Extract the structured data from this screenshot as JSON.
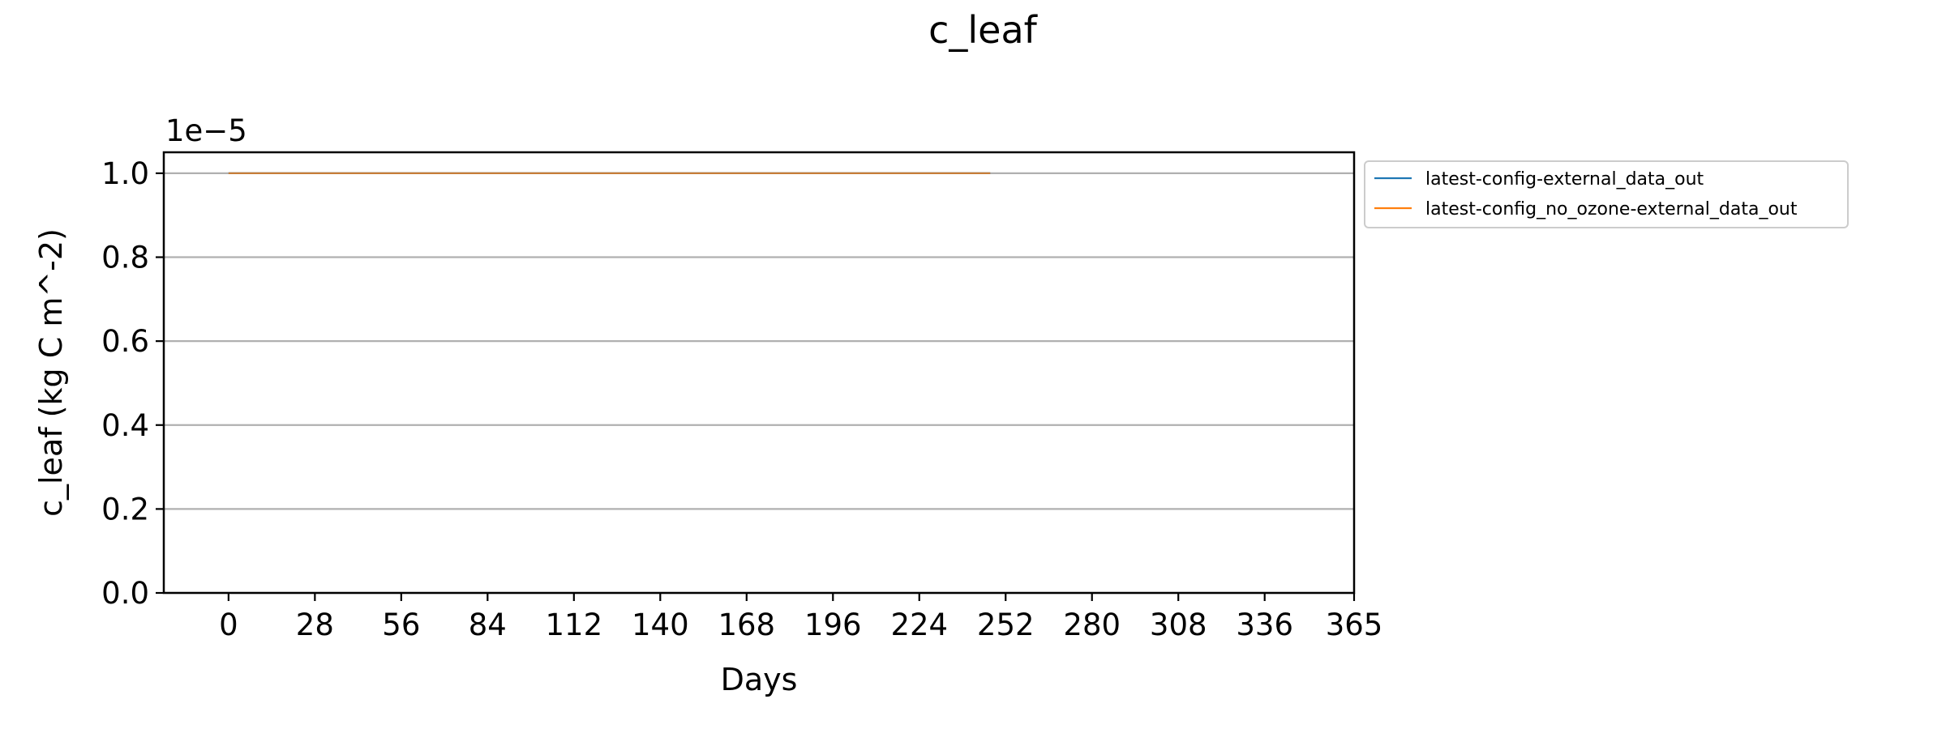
{
  "chart_data": {
    "type": "line",
    "title": "c_leaf",
    "xlabel": "Days",
    "ylabel": "c_leaf (kg C m^-2)",
    "y_offset_label": "1e−5",
    "xlim": [
      -21,
      365
    ],
    "ylim": [
      0,
      1.05
    ],
    "x_ticks": [
      0,
      28,
      56,
      84,
      112,
      140,
      168,
      196,
      224,
      252,
      280,
      308,
      336,
      365
    ],
    "y_ticks": [
      0.0,
      0.2,
      0.4,
      0.6,
      0.8,
      1.0
    ],
    "y_tick_labels": [
      "0.0",
      "0.2",
      "0.4",
      "0.6",
      "0.8",
      "1.0"
    ],
    "y_grid": true,
    "x_grid": false,
    "legend_placement": "outside upper right",
    "series": [
      {
        "name": "latest-config-external_data_out",
        "color": "#1f77b4",
        "x": [
          0,
          247
        ],
        "y": [
          1.0,
          1.0
        ]
      },
      {
        "name": "latest-config_no_ozone-external_data_out",
        "color": "#ff7f0e",
        "x": [
          0,
          247
        ],
        "y": [
          1.0,
          1.0
        ]
      }
    ]
  }
}
